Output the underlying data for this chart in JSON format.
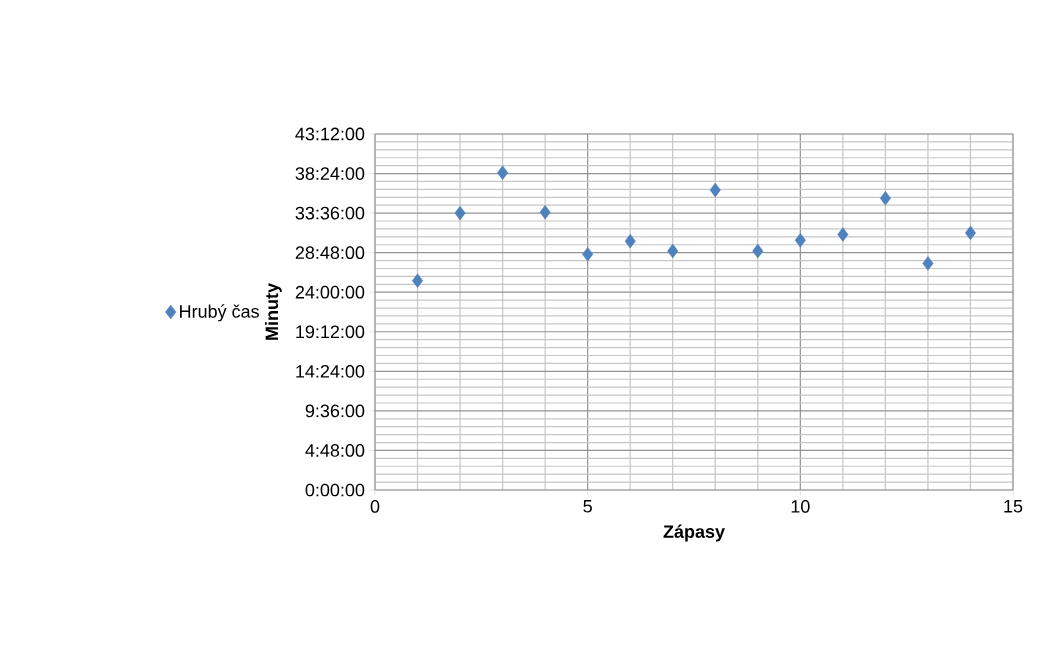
{
  "chart_data": {
    "type": "scatter",
    "xlabel": "Zápasy",
    "ylabel": "Minuty",
    "x": [
      1,
      2,
      3,
      4,
      5,
      6,
      7,
      8,
      9,
      10,
      11,
      12,
      13,
      14
    ],
    "series": [
      {
        "name": "Hrubý čas",
        "color": "#4f81bd",
        "values": [
          25.4,
          33.6,
          38.5,
          33.7,
          28.6,
          30.2,
          29.0,
          36.4,
          29.0,
          30.3,
          31.0,
          35.4,
          27.5,
          31.2
        ]
      }
    ],
    "xlim": [
      0,
      15
    ],
    "xticks": [
      0,
      5,
      10,
      15
    ],
    "ylim": [
      0,
      43.2
    ],
    "yticks": [
      {
        "value": 0,
        "label": "0:00:00"
      },
      {
        "value": 4.8,
        "label": "4:48:00"
      },
      {
        "value": 9.6,
        "label": "9:36:00"
      },
      {
        "value": 14.4,
        "label": "14:24:00"
      },
      {
        "value": 19.2,
        "label": "19:12:00"
      },
      {
        "value": 24,
        "label": "24:00:00"
      },
      {
        "value": 28.8,
        "label": "28:48:00"
      },
      {
        "value": 33.6,
        "label": "33:36:00"
      },
      {
        "value": 38.4,
        "label": "38:24:00"
      },
      {
        "value": 43.2,
        "label": "43:12:00"
      }
    ],
    "grid": true,
    "legend": "left",
    "marker": "diamond"
  }
}
